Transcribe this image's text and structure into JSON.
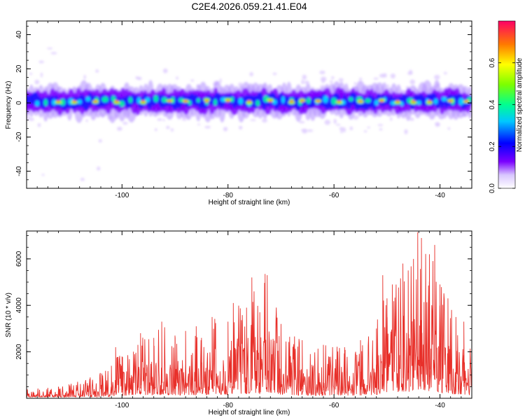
{
  "title": "C2E4.2026.059.21.41.E04",
  "chart_data": [
    {
      "type": "heatmap",
      "xlabel": "Height of straight line (km)",
      "ylabel": "Frequency (Hz)",
      "xlim": [
        -118,
        -34
      ],
      "ylim": [
        -50,
        48
      ],
      "xticks": [
        -100,
        -80,
        -60,
        -40
      ],
      "xtick_labels": [
        "-100",
        "-80",
        "-60",
        "-40"
      ],
      "yticks": [
        40,
        20,
        0,
        -20,
        -40
      ],
      "ytick_labels": [
        "40",
        "20",
        "0",
        "-20",
        "-40"
      ],
      "band_center_hz": 1,
      "band_halfwidth_hz": 5,
      "hotspots_km": [
        -112,
        -109,
        -105,
        -101,
        -96,
        -91,
        -88,
        -84,
        -80,
        -76,
        -72,
        -68,
        -66,
        -63,
        -59,
        -55,
        -51,
        -48,
        -45,
        -42,
        -38,
        -35
      ],
      "colorbar": {
        "label": "Normalized spectral amplitude",
        "range": [
          0,
          0.8
        ],
        "ticks": [
          0.0,
          0.2,
          0.4,
          0.6
        ],
        "tick_labels": [
          "0.0",
          "0.2",
          "0.4",
          "0.6"
        ]
      }
    },
    {
      "type": "line",
      "xlabel": "Height of straight line (km)",
      "ylabel": "SNR (10 * v/v)",
      "xlim": [
        -118,
        -34
      ],
      "ylim": [
        0,
        7200
      ],
      "xticks": [
        -100,
        -80,
        -60,
        -40
      ],
      "xtick_labels": [
        "-100",
        "-80",
        "-60",
        "-40"
      ],
      "yticks": [
        2000,
        4000,
        6000
      ],
      "ytick_labels": [
        "2000",
        "4000",
        "6000"
      ],
      "color": "#e8302a",
      "series": [
        {
          "name": "SNR",
          "x": [
            -118,
            -114,
            -112,
            -110,
            -106,
            -102,
            -101.2,
            -100,
            -97,
            -96.5,
            -94,
            -92.5,
            -90,
            -88,
            -86,
            -85,
            -83,
            -80,
            -79,
            -76.5,
            -75.5,
            -74,
            -73,
            -72.6,
            -70,
            -66,
            -62,
            -58,
            -55,
            -52,
            -50.8,
            -50,
            -49,
            -47,
            -46,
            -45,
            -44.2,
            -43.5,
            -42,
            -41,
            -40,
            -38.5,
            -37,
            -35.5,
            -34
          ],
          "values": [
            500,
            450,
            500,
            600,
            900,
            1400,
            2200,
            1800,
            2300,
            2800,
            2600,
            3300,
            2700,
            2900,
            3100,
            2600,
            3500,
            3300,
            4100,
            3900,
            5200,
            3700,
            5350,
            5300,
            3200,
            2500,
            2300,
            2200,
            2500,
            3000,
            5300,
            4300,
            4900,
            5800,
            5500,
            6000,
            7150,
            6900,
            6200,
            6600,
            4900,
            4300,
            3500,
            3300,
            2300
          ]
        }
      ]
    }
  ]
}
